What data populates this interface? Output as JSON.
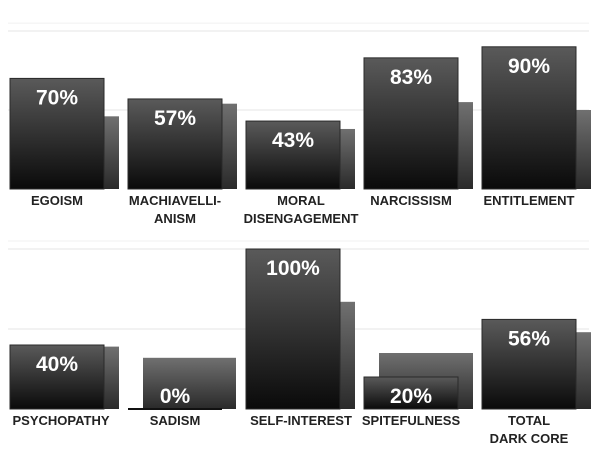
{
  "chart_data": [
    {
      "type": "bar",
      "categories": [
        "EGOISM",
        "MACHIAVELLI-\nANISM",
        "MORAL\nDISENGAGEMENT",
        "NARCISSISM",
        "ENTITLEMENT"
      ],
      "values": [
        70,
        57,
        43,
        83,
        90
      ],
      "value_labels": [
        "70%",
        "57%",
        "43%",
        "83%",
        "90%"
      ],
      "comparison_values": [
        46,
        54,
        38,
        55,
        50
      ],
      "ylim": [
        0,
        100
      ],
      "grid": true,
      "colors": {
        "bar_top": "#5a5a5a",
        "bar_bottom": "#0a0a0a",
        "comparison_top": "#707070",
        "comparison_bottom": "#2a2a2a",
        "label": "#ffffff",
        "category": "#222222",
        "grid": "#e6e6e6"
      }
    },
    {
      "type": "bar",
      "categories": [
        "PSYCHOPATHY",
        "SADISM",
        "SELF-INTEREST",
        "SPITEFULNESS",
        "TOTAL\nDARK CORE"
      ],
      "values": [
        40,
        0,
        100,
        20,
        56
      ],
      "value_labels": [
        "40%",
        "0%",
        "100%",
        "20%",
        "56%"
      ],
      "comparison_values": [
        39,
        32,
        67,
        35,
        48
      ],
      "ylim": [
        0,
        100
      ],
      "grid": true,
      "colors": {
        "bar_top": "#5a5a5a",
        "bar_bottom": "#0a0a0a",
        "comparison_top": "#707070",
        "comparison_bottom": "#2a2a2a",
        "label": "#ffffff",
        "category": "#222222",
        "grid": "#e6e6e6"
      }
    }
  ]
}
